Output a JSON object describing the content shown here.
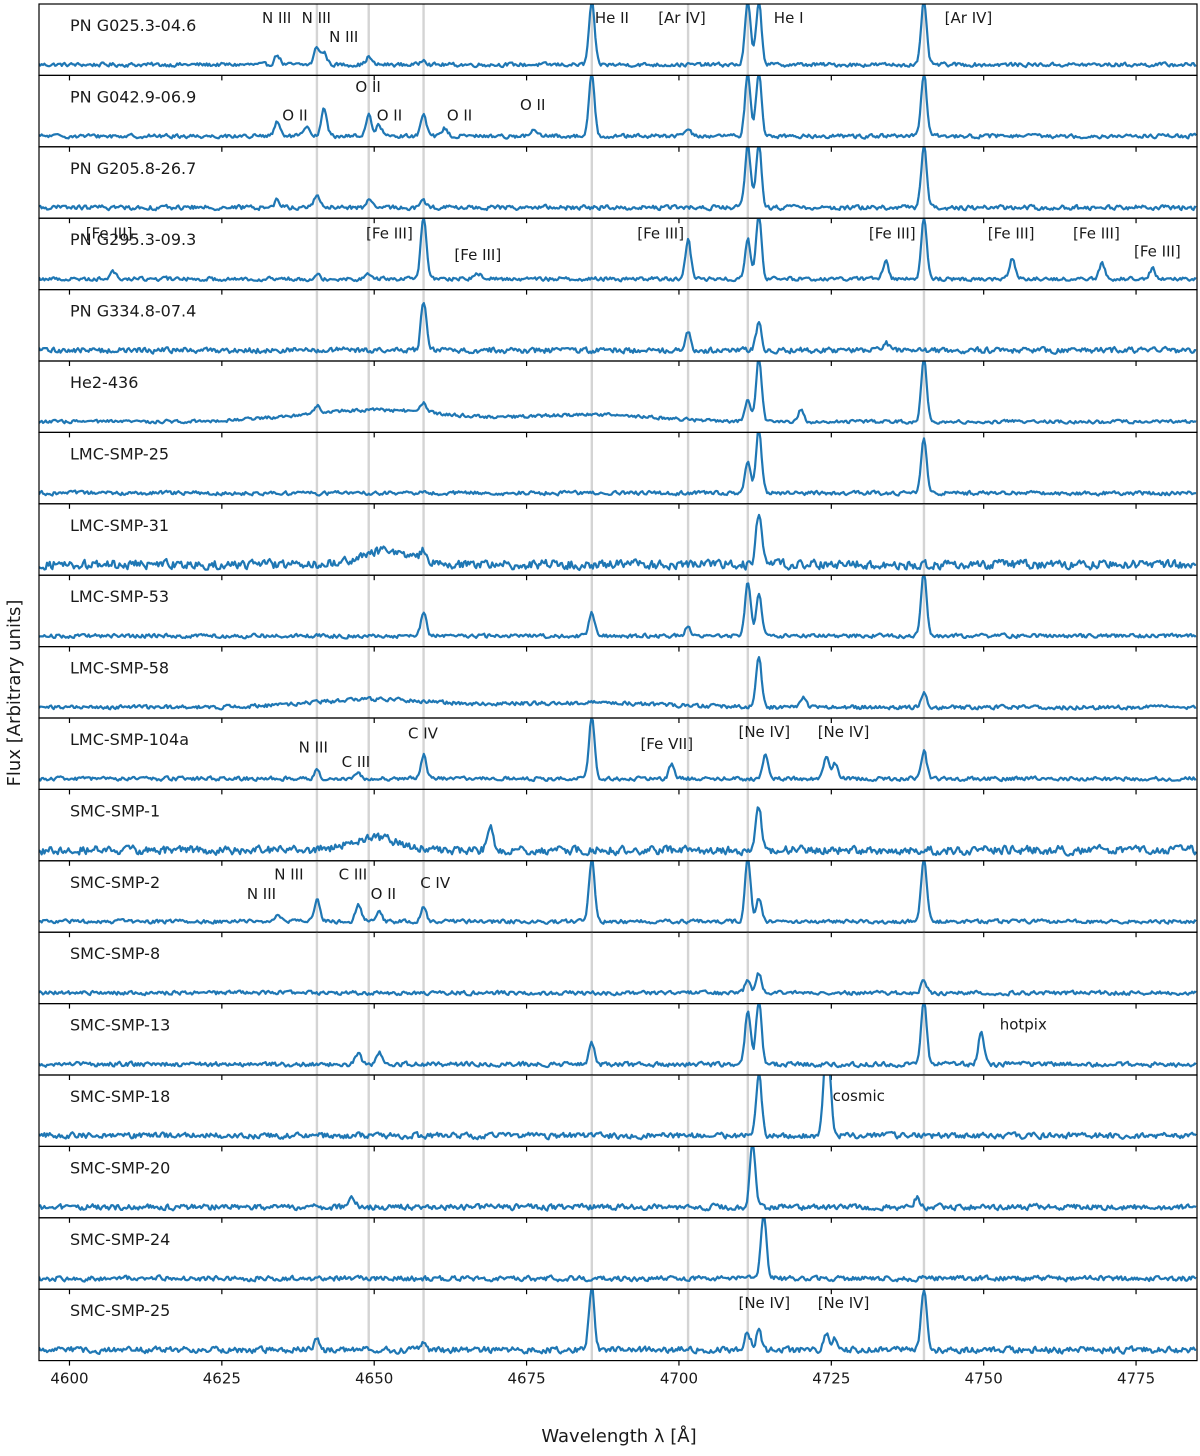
{
  "chart_data": {
    "type": "line",
    "xlabel": "Wavelength λ  [Å]",
    "ylabel": "Flux  [Arbitrary units]",
    "xlim": [
      4595,
      4785
    ],
    "xticks": [
      4600,
      4625,
      4650,
      4675,
      4700,
      4725,
      4750,
      4775
    ],
    "xtick_labels": [
      "4600",
      "4625",
      "4650",
      "4675",
      "4700",
      "4725",
      "4750",
      "4775"
    ],
    "reference_lines": [
      4640.6,
      4649.1,
      4658.1,
      4685.7,
      4701.5,
      4711.3,
      4740.2
    ],
    "grid": false,
    "color": "#1f77b4",
    "panels": [
      {
        "label": "PN G025.3-04.6",
        "noise": 0.07,
        "lines": [
          [
            4634.1,
            0.25
          ],
          [
            4640.6,
            0.45
          ],
          [
            4641.8,
            0.3
          ],
          [
            4649.1,
            0.2
          ],
          [
            4658.1,
            0.15
          ],
          [
            4685.7,
            1.6
          ],
          [
            4711.3,
            1.6
          ],
          [
            4713.1,
            1.6
          ],
          [
            4740.2,
            1.6
          ]
        ],
        "annotations": [
          {
            "text": "N III",
            "x": 4634.0,
            "level": 0.82
          },
          {
            "text": "N III",
            "x": 4640.5,
            "level": 0.82
          },
          {
            "text": "N III",
            "x": 4645.0,
            "level": 0.55
          },
          {
            "text": "He II",
            "x": 4689.0,
            "level": 0.82
          },
          {
            "text": "[Ar IV]",
            "x": 4700.5,
            "level": 0.82
          },
          {
            "text": "He I",
            "x": 4718.0,
            "level": 0.82
          },
          {
            "text": "[Ar IV]",
            "x": 4747.5,
            "level": 0.82
          }
        ]
      },
      {
        "label": "PN G042.9-06.9",
        "noise": 0.07,
        "lines": [
          [
            4634.1,
            0.35
          ],
          [
            4638.9,
            0.22
          ],
          [
            4641.8,
            0.7
          ],
          [
            4649.1,
            0.55
          ],
          [
            4650.8,
            0.3
          ],
          [
            4658.1,
            0.55
          ],
          [
            4661.6,
            0.2
          ],
          [
            4676.2,
            0.15
          ],
          [
            4685.7,
            1.6
          ],
          [
            4701.5,
            0.2
          ],
          [
            4711.3,
            1.6
          ],
          [
            4713.1,
            1.6
          ],
          [
            4740.2,
            1.6
          ]
        ],
        "annotations": [
          {
            "text": "O II",
            "x": 4637.0,
            "level": 0.45
          },
          {
            "text": "O II",
            "x": 4649.0,
            "level": 0.85
          },
          {
            "text": "O II",
            "x": 4652.5,
            "level": 0.45
          },
          {
            "text": "O II",
            "x": 4664.0,
            "level": 0.45
          },
          {
            "text": "O II",
            "x": 4676.0,
            "level": 0.6
          }
        ]
      },
      {
        "label": "PN G205.8-26.7",
        "noise": 0.08,
        "lines": [
          [
            4634.1,
            0.2
          ],
          [
            4640.6,
            0.35
          ],
          [
            4649.1,
            0.15
          ],
          [
            4658.1,
            0.15
          ],
          [
            4711.3,
            1.6
          ],
          [
            4713.1,
            1.6
          ],
          [
            4740.2,
            1.6
          ]
        ],
        "annotations": []
      },
      {
        "label": "PN G295.3-09.3",
        "noise": 0.07,
        "lines": [
          [
            4607.1,
            0.22
          ],
          [
            4640.6,
            0.15
          ],
          [
            4649.1,
            0.15
          ],
          [
            4658.1,
            1.6
          ],
          [
            4667.0,
            0.15
          ],
          [
            4701.5,
            1.0
          ],
          [
            4711.3,
            1.0
          ],
          [
            4713.1,
            1.6
          ],
          [
            4733.9,
            0.45
          ],
          [
            4740.2,
            1.6
          ],
          [
            4754.7,
            0.55
          ],
          [
            4769.4,
            0.4
          ],
          [
            4777.7,
            0.25
          ]
        ],
        "annotations": [
          {
            "text": "[Fe III]",
            "x": 4606.5,
            "level": 0.8
          },
          {
            "text": "[Fe III]",
            "x": 4652.5,
            "level": 0.8
          },
          {
            "text": "[Fe III]",
            "x": 4667.0,
            "level": 0.5
          },
          {
            "text": "[Fe III]",
            "x": 4697.0,
            "level": 0.8
          },
          {
            "text": "[Fe III]",
            "x": 4735.0,
            "level": 0.8
          },
          {
            "text": "[Fe III]",
            "x": 4754.5,
            "level": 0.8
          },
          {
            "text": "[Fe III]",
            "x": 4768.5,
            "level": 0.8
          },
          {
            "text": "[Fe III]",
            "x": 4778.5,
            "level": 0.55
          }
        ]
      },
      {
        "label": "PN G334.8-07.4",
        "noise": 0.1,
        "lines": [
          [
            4658.1,
            1.2
          ],
          [
            4701.5,
            0.5
          ],
          [
            4713.1,
            0.7
          ],
          [
            4733.9,
            0.2
          ]
        ],
        "annotations": []
      },
      {
        "label": "He2-436",
        "noise": 0.06,
        "bumps": [
          [
            4650,
            12,
            0.3
          ],
          [
            4686,
            10,
            0.18
          ]
        ],
        "lines": [
          [
            4640.6,
            0.2
          ],
          [
            4658.1,
            0.25
          ],
          [
            4711.3,
            0.55
          ],
          [
            4713.1,
            1.6
          ],
          [
            4720.0,
            0.3
          ],
          [
            4740.2,
            1.6
          ]
        ],
        "annotations": []
      },
      {
        "label": "LMC-SMP-25",
        "noise": 0.07,
        "lines": [
          [
            4711.3,
            0.8
          ],
          [
            4713.1,
            1.6
          ],
          [
            4740.2,
            1.4
          ]
        ],
        "annotations": []
      },
      {
        "label": "LMC-SMP-31",
        "noise": 0.16,
        "bumps": [
          [
            4652,
            4,
            0.35
          ]
        ],
        "lines": [
          [
            4658.1,
            0.25
          ],
          [
            4713.1,
            1.3
          ]
        ],
        "annotations": []
      },
      {
        "label": "LMC-SMP-53",
        "noise": 0.07,
        "lines": [
          [
            4658.1,
            0.6
          ],
          [
            4685.7,
            0.6
          ],
          [
            4701.5,
            0.25
          ],
          [
            4711.3,
            1.4
          ],
          [
            4713.1,
            1.1
          ],
          [
            4740.2,
            1.6
          ]
        ],
        "annotations": []
      },
      {
        "label": "LMC-SMP-58",
        "noise": 0.07,
        "bumps": [
          [
            4650,
            10,
            0.2
          ],
          [
            4684,
            12,
            0.12
          ]
        ],
        "lines": [
          [
            4713.1,
            1.3
          ],
          [
            4720.4,
            0.25
          ],
          [
            4740.2,
            0.4
          ]
        ],
        "annotations": []
      },
      {
        "label": "LMC-SMP-104a",
        "noise": 0.07,
        "lines": [
          [
            4640.6,
            0.2
          ],
          [
            4647.4,
            0.15
          ],
          [
            4658.1,
            0.6
          ],
          [
            4685.7,
            1.6
          ],
          [
            4698.8,
            0.35
          ],
          [
            4714.2,
            0.6
          ],
          [
            4724.2,
            0.55
          ],
          [
            4725.6,
            0.4
          ],
          [
            4740.2,
            0.7
          ]
        ],
        "annotations": [
          {
            "text": "N III",
            "x": 4640.0,
            "level": 0.6
          },
          {
            "text": "C III",
            "x": 4647.0,
            "level": 0.4
          },
          {
            "text": "C IV",
            "x": 4658.0,
            "level": 0.8
          },
          {
            "text": "[Fe VII]",
            "x": 4698.0,
            "level": 0.65
          },
          {
            "text": "[Ne IV]",
            "x": 4714.0,
            "level": 0.82
          },
          {
            "text": "[Ne IV]",
            "x": 4727.0,
            "level": 0.82
          }
        ]
      },
      {
        "label": "SMC-SMP-1",
        "noise": 0.15,
        "bumps": [
          [
            4650,
            4,
            0.3
          ]
        ],
        "lines": [
          [
            4669.0,
            0.7
          ],
          [
            4713.1,
            1.1
          ]
        ],
        "annotations": []
      },
      {
        "label": "SMC-SMP-2",
        "noise": 0.07,
        "lines": [
          [
            4634.1,
            0.2
          ],
          [
            4640.6,
            0.55
          ],
          [
            4647.4,
            0.45
          ],
          [
            4650.8,
            0.25
          ],
          [
            4658.1,
            0.35
          ],
          [
            4685.7,
            1.6
          ],
          [
            4711.3,
            1.6
          ],
          [
            4713.1,
            0.6
          ],
          [
            4740.2,
            1.6
          ]
        ],
        "annotations": [
          {
            "text": "N III",
            "x": 4631.5,
            "level": 0.55
          },
          {
            "text": "N III",
            "x": 4636.0,
            "level": 0.82
          },
          {
            "text": "C III",
            "x": 4646.5,
            "level": 0.82
          },
          {
            "text": "O II",
            "x": 4651.5,
            "level": 0.55
          },
          {
            "text": "C IV",
            "x": 4660.0,
            "level": 0.7
          }
        ]
      },
      {
        "label": "SMC-SMP-8",
        "noise": 0.07,
        "lines": [
          [
            4711.3,
            0.35
          ],
          [
            4713.1,
            0.5
          ],
          [
            4740.2,
            0.35
          ]
        ],
        "annotations": []
      },
      {
        "label": "SMC-SMP-13",
        "noise": 0.08,
        "lines": [
          [
            4647.4,
            0.3
          ],
          [
            4650.8,
            0.3
          ],
          [
            4685.7,
            0.55
          ],
          [
            4711.3,
            1.4
          ],
          [
            4713.1,
            1.6
          ],
          [
            4740.2,
            1.6
          ],
          [
            4749.6,
            0.85
          ]
        ],
        "annotations": [
          {
            "text": "hotpix",
            "x": 4756.5,
            "level": 0.72
          }
        ]
      },
      {
        "label": "SMC-SMP-18",
        "noise": 0.1,
        "lines": [
          [
            4713.1,
            1.6
          ],
          [
            4724.0,
            1.5
          ],
          [
            4724.6,
            1.4
          ]
        ],
        "annotations": [
          {
            "text": "cosmic",
            "x": 4729.5,
            "level": 0.72
          }
        ]
      },
      {
        "label": "SMC-SMP-20",
        "noise": 0.1,
        "lines": [
          [
            4712.1,
            1.6
          ],
          [
            4646.5,
            0.25
          ],
          [
            4739.1,
            0.25
          ]
        ],
        "annotations": []
      },
      {
        "label": "SMC-SMP-24",
        "noise": 0.09,
        "lines": [
          [
            4713.9,
            1.6
          ]
        ],
        "annotations": []
      },
      {
        "label": "SMC-SMP-25",
        "noise": 0.11,
        "lines": [
          [
            4640.6,
            0.25
          ],
          [
            4658.1,
            0.25
          ],
          [
            4685.7,
            1.6
          ],
          [
            4711.3,
            0.45
          ],
          [
            4713.1,
            0.5
          ],
          [
            4724.2,
            0.4
          ],
          [
            4725.6,
            0.3
          ],
          [
            4740.2,
            1.6
          ]
        ],
        "annotations": [
          {
            "text": "[Ne IV]",
            "x": 4714.0,
            "level": 0.82
          },
          {
            "text": "[Ne IV]",
            "x": 4727.0,
            "level": 0.82
          }
        ]
      }
    ]
  }
}
